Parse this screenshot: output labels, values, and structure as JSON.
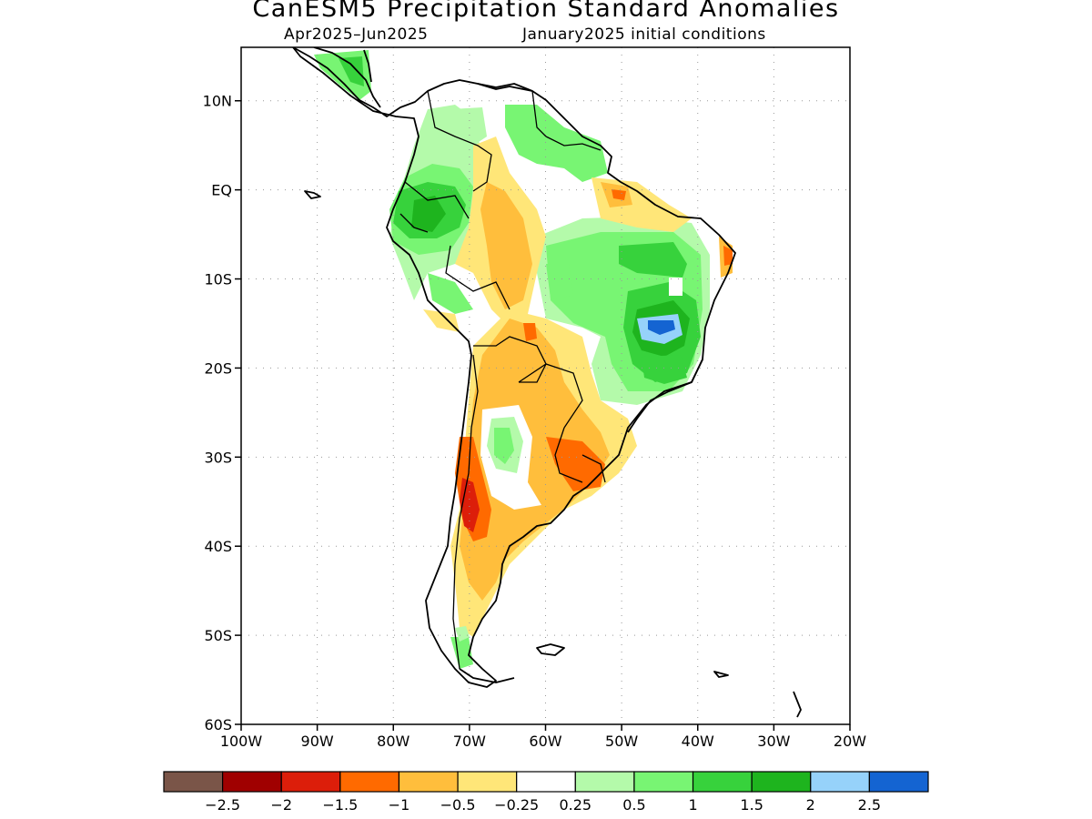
{
  "header": {
    "title": "CanESM5 Precipitation Standard Anomalies",
    "period": "Apr2025–Jun2025",
    "init": "January2025 initial conditions"
  },
  "map": {
    "region": "South America",
    "lon_range": [
      -100,
      -20
    ],
    "lat_range": [
      -60,
      16
    ],
    "lat_ticks": [
      {
        "value": 10,
        "label": "10N"
      },
      {
        "value": 0,
        "label": "EQ"
      },
      {
        "value": -10,
        "label": "10S"
      },
      {
        "value": -20,
        "label": "20S"
      },
      {
        "value": -30,
        "label": "30S"
      },
      {
        "value": -40,
        "label": "40S"
      },
      {
        "value": -50,
        "label": "50S"
      },
      {
        "value": -60,
        "label": "60S"
      }
    ],
    "lon_ticks": [
      {
        "value": -100,
        "label": "100W"
      },
      {
        "value": -90,
        "label": "90W"
      },
      {
        "value": -80,
        "label": "80W"
      },
      {
        "value": -70,
        "label": "70W"
      },
      {
        "value": -60,
        "label": "60W"
      },
      {
        "value": -50,
        "label": "50W"
      },
      {
        "value": -40,
        "label": "40W"
      },
      {
        "value": -30,
        "label": "30W"
      },
      {
        "value": -20,
        "label": "20W"
      }
    ],
    "grid": "dotted"
  },
  "colorbar": {
    "colors": [
      "#7a5548",
      "#a00000",
      "#dc1e0a",
      "#ff6a00",
      "#ffbe3c",
      "#ffe678",
      "#ffffff",
      "#b4faaa",
      "#78f573",
      "#37d23c",
      "#1eb41e",
      "#96d2fa",
      "#1464d2"
    ],
    "labels": [
      "−2.5",
      "−2",
      "−1.5",
      "−1",
      "−0.5",
      "−0.25",
      "0.25",
      "0.5",
      "1",
      "1.5",
      "2",
      "2.5"
    ]
  }
}
